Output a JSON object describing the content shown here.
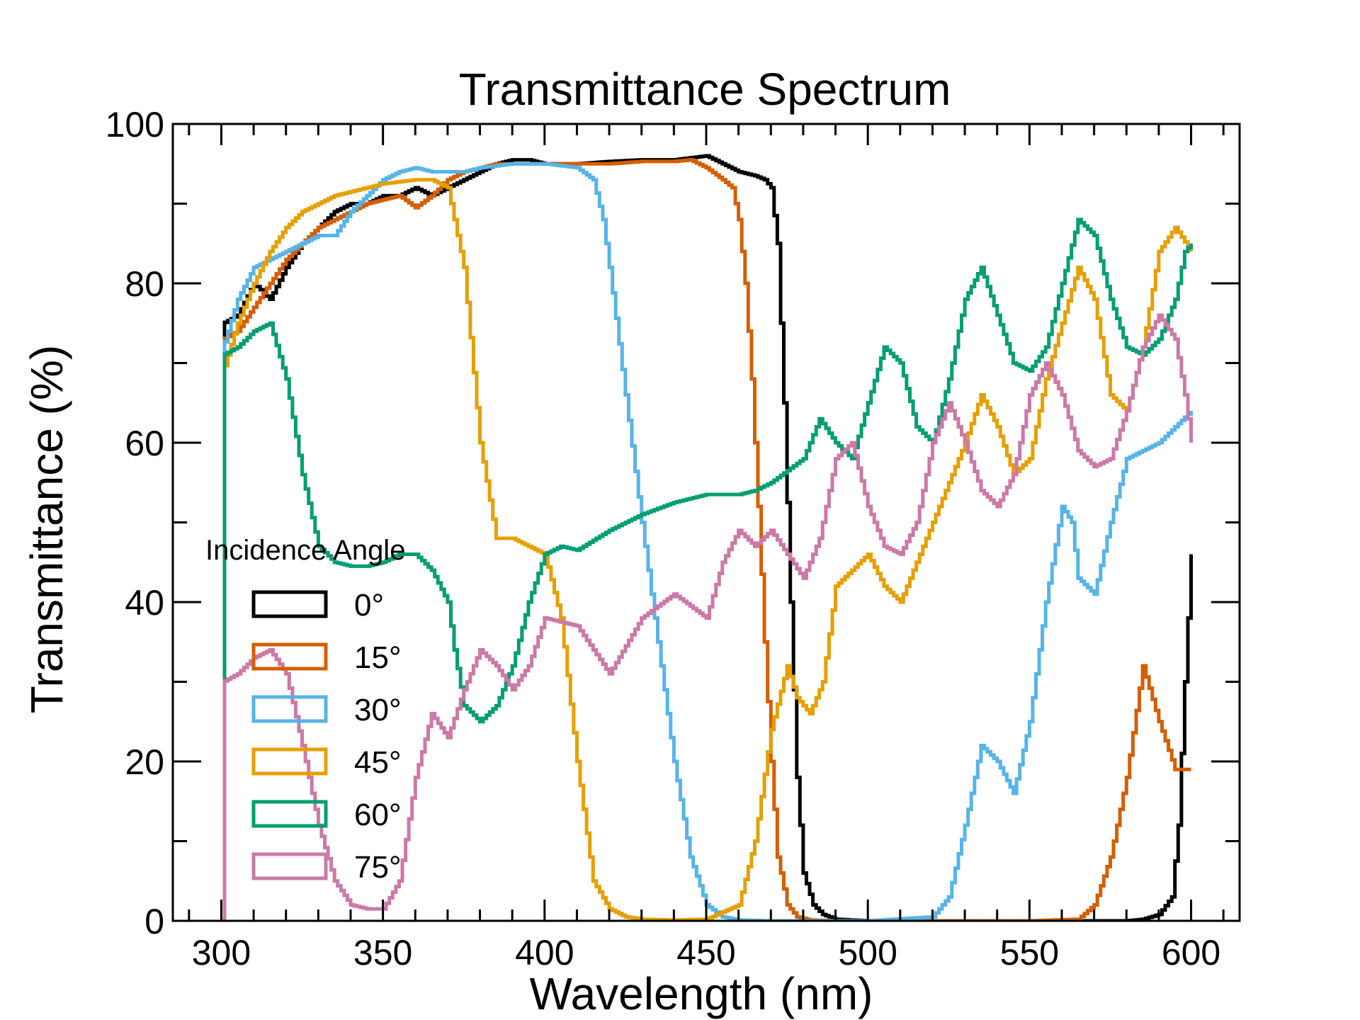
{
  "chart_data": {
    "type": "line",
    "title": "Transmittance Spectrum",
    "xlabel": "Wavelength (nm)",
    "ylabel": "Transmittance (%)",
    "xlim": [
      285,
      615
    ],
    "ylim": [
      0,
      100
    ],
    "xticks": [
      300,
      350,
      400,
      450,
      500,
      550,
      600
    ],
    "yticks": [
      0,
      20,
      40,
      60,
      80,
      100
    ],
    "grid": false,
    "legend": {
      "title": "Incidence Angle",
      "position": "lower-left"
    },
    "series": [
      {
        "name": "0°",
        "color": "#000000",
        "x": [
          300,
          300.5,
          305,
          310,
          315,
          320,
          325,
          330,
          335,
          340,
          345,
          350,
          355,
          360,
          365,
          370,
          375,
          380,
          385,
          390,
          395,
          400,
          410,
          420,
          430,
          440,
          450,
          455,
          460,
          465,
          468,
          470,
          472,
          474,
          476,
          478,
          480,
          483,
          486,
          490,
          500,
          550,
          580,
          585,
          590,
          594,
          596,
          598,
          600
        ],
        "y": [
          0,
          75,
          76,
          80,
          78,
          82,
          85,
          87,
          89,
          90,
          90,
          91,
          91,
          92,
          91,
          92,
          93,
          94,
          95,
          95.5,
          95.5,
          95,
          95,
          95.3,
          95.5,
          95.5,
          96,
          95,
          94,
          93.5,
          93,
          92,
          85,
          65,
          40,
          18,
          6,
          2,
          0.8,
          0.2,
          0,
          0,
          0,
          0.2,
          0.8,
          3,
          12,
          30,
          46
        ]
      },
      {
        "name": "15°",
        "color": "#D55E00",
        "x": [
          300,
          300.5,
          305,
          310,
          315,
          320,
          325,
          330,
          335,
          340,
          345,
          350,
          355,
          360,
          365,
          370,
          375,
          380,
          385,
          390,
          395,
          400,
          410,
          420,
          430,
          440,
          445,
          450,
          455,
          458,
          460,
          462,
          464,
          466,
          468,
          470,
          472,
          475,
          478,
          482,
          490,
          500,
          550,
          565,
          570,
          575,
          580,
          585,
          590,
          595,
          600
        ],
        "y": [
          0,
          73,
          74,
          77,
          80,
          83,
          85,
          87,
          88,
          89,
          90,
          90.5,
          91,
          89.5,
          91,
          93,
          94,
          94.5,
          95,
          95,
          95,
          95,
          95,
          95,
          95.3,
          95.3,
          95.5,
          94.5,
          93,
          92,
          88,
          80,
          68,
          52,
          35,
          20,
          8,
          2,
          0.5,
          0.1,
          0,
          0,
          0,
          0.2,
          2,
          8,
          18,
          32,
          25,
          19,
          19
        ]
      },
      {
        "name": "30°",
        "color": "#56B4E9",
        "x": [
          300,
          300.5,
          305,
          310,
          315,
          320,
          325,
          330,
          335,
          340,
          345,
          350,
          355,
          360,
          365,
          370,
          375,
          380,
          390,
          400,
          410,
          415,
          418,
          420,
          425,
          430,
          435,
          440,
          445,
          450,
          455,
          460,
          470,
          500,
          520,
          525,
          530,
          535,
          540,
          545,
          550,
          555,
          560,
          563,
          565,
          570,
          575,
          580,
          585,
          590,
          595,
          600
        ],
        "y": [
          0,
          72,
          78,
          82,
          83,
          84,
          85,
          86,
          86,
          89,
          91,
          93,
          94,
          94.5,
          94,
          94,
          94,
          94.5,
          95,
          95,
          94.5,
          93,
          88,
          82,
          66,
          50,
          35,
          20,
          8,
          2,
          0.5,
          0.1,
          0,
          0,
          0.5,
          3,
          12,
          22,
          20,
          16,
          25,
          40,
          52,
          50,
          43,
          41,
          50,
          58,
          59,
          60,
          62,
          64
        ]
      },
      {
        "name": "45°",
        "color": "#E69F00",
        "x": [
          300,
          300.5,
          305,
          310,
          315,
          320,
          325,
          330,
          335,
          340,
          350,
          360,
          365,
          370,
          375,
          380,
          385,
          390,
          400,
          405,
          410,
          415,
          420,
          425,
          430,
          440,
          450,
          460,
          465,
          470,
          475,
          478,
          482,
          486,
          490,
          500,
          505,
          510,
          520,
          530,
          535,
          540,
          545,
          550,
          555,
          560,
          565,
          570,
          575,
          580,
          585,
          590,
          595,
          600
        ],
        "y": [
          0,
          69,
          75,
          80,
          84,
          87,
          89,
          90,
          91,
          91.5,
          92.5,
          93,
          93,
          92,
          82,
          60,
          48,
          48,
          46,
          38,
          20,
          5,
          1.5,
          0.5,
          0.2,
          0.1,
          0.2,
          2,
          10,
          24,
          32,
          28,
          26,
          30,
          42,
          46,
          42,
          40,
          50,
          60,
          66,
          62,
          56,
          58,
          68,
          75,
          82,
          78,
          66,
          64,
          72,
          84,
          87,
          84
        ]
      },
      {
        "name": "60°",
        "color": "#009E73",
        "x": [
          300,
          300.5,
          305,
          310,
          315,
          320,
          325,
          330,
          335,
          340,
          345,
          350,
          355,
          360,
          365,
          370,
          372,
          375,
          380,
          385,
          390,
          395,
          400,
          405,
          410,
          420,
          430,
          440,
          450,
          460,
          465,
          470,
          480,
          485,
          490,
          495,
          500,
          505,
          510,
          515,
          520,
          525,
          530,
          535,
          540,
          545,
          550,
          555,
          560,
          565,
          570,
          575,
          580,
          585,
          590,
          595,
          598,
          600
        ],
        "y": [
          0,
          71,
          72,
          74,
          75,
          68,
          56,
          47,
          45,
          44.5,
          44.5,
          45,
          46,
          46,
          44,
          40,
          34,
          27,
          25,
          27,
          32,
          40,
          46,
          47,
          46.5,
          49,
          51,
          52.5,
          53.5,
          53.5,
          54,
          55,
          58,
          63,
          60,
          58,
          65,
          72,
          70,
          62,
          60,
          68,
          78,
          82,
          76,
          70,
          69,
          72,
          80,
          88,
          86,
          78,
          72,
          71,
          73,
          78,
          84,
          85
        ]
      },
      {
        "name": "75°",
        "color": "#CC79A7",
        "x": [
          300,
          300.5,
          305,
          310,
          315,
          320,
          325,
          330,
          335,
          340,
          345,
          350,
          355,
          360,
          365,
          370,
          375,
          380,
          385,
          390,
          395,
          400,
          410,
          420,
          430,
          440,
          450,
          455,
          460,
          465,
          470,
          475,
          480,
          485,
          490,
          495,
          500,
          505,
          510,
          515,
          520,
          525,
          530,
          535,
          540,
          545,
          550,
          555,
          560,
          565,
          570,
          575,
          580,
          585,
          590,
          595,
          598,
          600
        ],
        "y": [
          0,
          30,
          31,
          33,
          34,
          31,
          22,
          12,
          5,
          2,
          1.5,
          1.5,
          5,
          18,
          26,
          23,
          29,
          34,
          32,
          29,
          32,
          38,
          37,
          31,
          38,
          41,
          38,
          45,
          49,
          47,
          49,
          46,
          43,
          48,
          58,
          60,
          52,
          47,
          46,
          50,
          60,
          65,
          60,
          54,
          52,
          56,
          66,
          70,
          66,
          59,
          57,
          58,
          64,
          72,
          76,
          73,
          66,
          60
        ]
      }
    ]
  }
}
